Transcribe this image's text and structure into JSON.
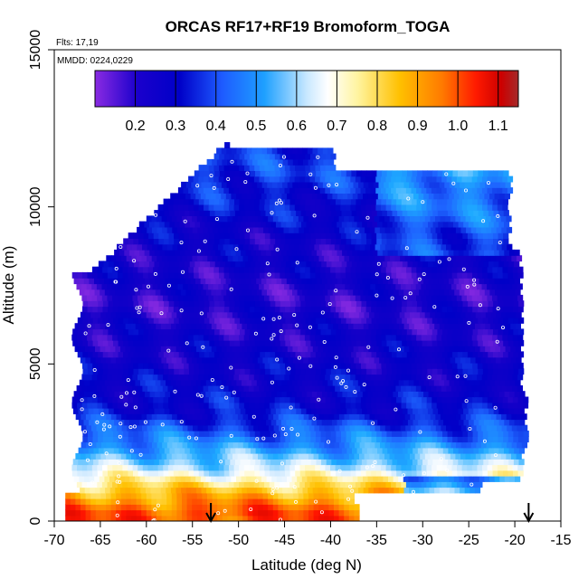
{
  "chart_data": {
    "type": "heatmap",
    "title": "ORCAS RF17+RF19 Bromoform_TOGA",
    "flights_label": "Flts: 17,19",
    "date_label": "MMDD: 0224,0229",
    "xlabel": "Latitude (deg N)",
    "ylabel": "Altitude (m)",
    "xlim": [
      -70,
      -15
    ],
    "ylim": [
      0,
      15000
    ],
    "x_ticks": [
      -70,
      -65,
      -60,
      -55,
      -50,
      -45,
      -40,
      -35,
      -30,
      -25,
      -20,
      -15
    ],
    "y_ticks": [
      0,
      5000,
      10000,
      15000
    ],
    "colorbar": {
      "range": [
        0.1,
        1.15
      ],
      "ticks": [
        0.2,
        0.3,
        0.4,
        0.5,
        0.6,
        0.7,
        0.8,
        0.9,
        1.0,
        1.1
      ],
      "tick_labels": [
        "0.2",
        "0.3",
        "0.4",
        "0.5",
        "0.6",
        "0.7",
        "0.8",
        "0.9",
        "1.0",
        "1.1"
      ],
      "placement": "top inside plot"
    },
    "colors": {
      "low": "#8a2be2",
      "mid_low": "#0000cd",
      "mid": "#1e90ff",
      "neutral": "#ffffff",
      "mid_high": "#ffd700",
      "high": "#ff4500",
      "max": "#a52a2a"
    },
    "arrows_latitude": [
      -53,
      -18.5
    ],
    "approx_value_by_altitude": [
      {
        "altitude_m": 300,
        "value": 0.95
      },
      {
        "altitude_m": 1000,
        "value": 0.8
      },
      {
        "altitude_m": 1700,
        "value": 0.6
      },
      {
        "altitude_m": 2500,
        "value": 0.45
      },
      {
        "altitude_m": 3500,
        "value": 0.3
      },
      {
        "altitude_m": 5000,
        "value": 0.25
      },
      {
        "altitude_m": 7000,
        "value": 0.2
      },
      {
        "altitude_m": 9000,
        "value": 0.25
      },
      {
        "altitude_m": 11000,
        "value": 0.35
      }
    ],
    "grid": false
  }
}
